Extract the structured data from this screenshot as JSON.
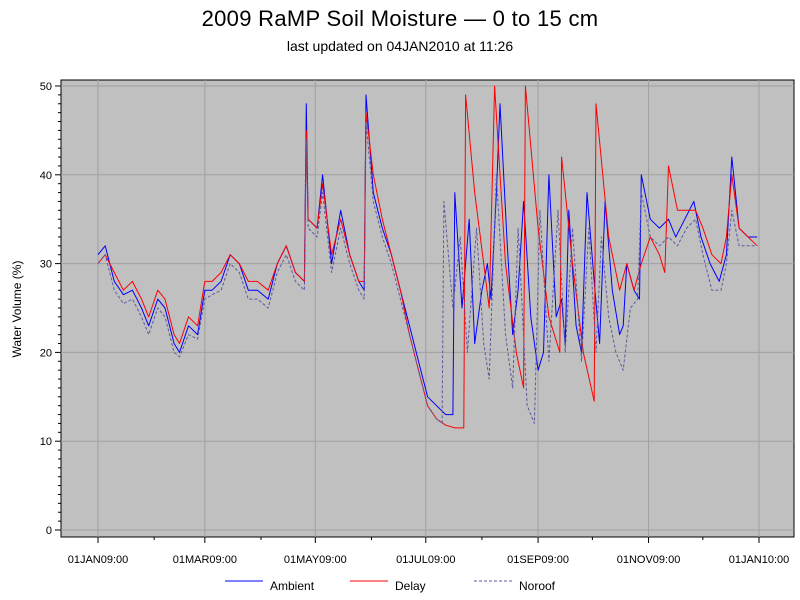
{
  "chart_data": {
    "type": "line",
    "title": "2009 RaMP Soil Moisture — 0 to 15 cm",
    "subtitle": "last updated on 04JAN2010 at 11:26",
    "xlabel": "",
    "ylabel": "Water Volume (%)",
    "ylim": [
      0,
      50
    ],
    "xlim": [
      "2009-01-01",
      "2010-01-01"
    ],
    "yticks": [
      0,
      10,
      20,
      30,
      40,
      50
    ],
    "xticks": [
      {
        "date": "2009-01-01",
        "label": "01JAN09:00"
      },
      {
        "date": "2009-03-01",
        "label": "01MAR09:00"
      },
      {
        "date": "2009-05-01",
        "label": "01MAY09:00"
      },
      {
        "date": "2009-07-01",
        "label": "01JUL09:00"
      },
      {
        "date": "2009-09-01",
        "label": "01SEP09:00"
      },
      {
        "date": "2009-11-01",
        "label": "01NOV09:00"
      },
      {
        "date": "2010-01-01",
        "label": "01JAN10:00"
      }
    ],
    "grid": true,
    "legend_position": "bottom",
    "series": [
      {
        "name": "Ambient",
        "color": "#0000ff",
        "style": "solid",
        "points": [
          [
            "2009-01-01",
            31
          ],
          [
            "2009-01-05",
            32
          ],
          [
            "2009-01-10",
            28
          ],
          [
            "2009-01-15",
            26.5
          ],
          [
            "2009-01-20",
            27
          ],
          [
            "2009-01-25",
            25
          ],
          [
            "2009-01-29",
            23
          ],
          [
            "2009-02-03",
            26
          ],
          [
            "2009-02-07",
            25
          ],
          [
            "2009-02-12",
            21
          ],
          [
            "2009-02-15",
            20
          ],
          [
            "2009-02-20",
            23
          ],
          [
            "2009-02-25",
            22
          ],
          [
            "2009-03-01",
            27
          ],
          [
            "2009-03-05",
            27
          ],
          [
            "2009-03-10",
            28
          ],
          [
            "2009-03-15",
            31
          ],
          [
            "2009-03-20",
            30
          ],
          [
            "2009-03-25",
            27
          ],
          [
            "2009-03-30",
            27
          ],
          [
            "2009-04-05",
            26
          ],
          [
            "2009-04-10",
            30
          ],
          [
            "2009-04-15",
            32
          ],
          [
            "2009-04-20",
            29
          ],
          [
            "2009-04-25",
            28
          ],
          [
            "2009-04-26",
            48
          ],
          [
            "2009-04-27",
            35
          ],
          [
            "2009-05-02",
            34
          ],
          [
            "2009-05-05",
            40
          ],
          [
            "2009-05-10",
            30
          ],
          [
            "2009-05-15",
            36
          ],
          [
            "2009-05-20",
            31
          ],
          [
            "2009-05-25",
            28
          ],
          [
            "2009-05-28",
            27
          ],
          [
            "2009-05-29",
            49
          ],
          [
            "2009-06-02",
            38
          ],
          [
            "2009-06-07",
            34
          ],
          [
            "2009-06-12",
            31
          ],
          [
            "2009-06-17",
            27
          ],
          [
            "2009-06-22",
            23
          ],
          [
            "2009-06-27",
            19
          ],
          [
            "2009-07-02",
            15
          ],
          [
            "2009-07-07",
            14
          ],
          [
            "2009-07-12",
            13
          ],
          [
            "2009-07-16",
            13
          ],
          [
            "2009-07-17",
            38
          ],
          [
            "2009-07-21",
            25
          ],
          [
            "2009-07-25",
            35
          ],
          [
            "2009-07-28",
            21
          ],
          [
            "2009-08-01",
            27
          ],
          [
            "2009-08-04",
            30
          ],
          [
            "2009-08-06",
            26
          ],
          [
            "2009-08-09",
            38
          ],
          [
            "2009-08-11",
            48
          ],
          [
            "2009-08-15",
            32
          ],
          [
            "2009-08-18",
            22
          ],
          [
            "2009-08-21",
            27
          ],
          [
            "2009-08-24",
            37
          ],
          [
            "2009-08-28",
            24
          ],
          [
            "2009-09-01",
            18
          ],
          [
            "2009-09-04",
            20
          ],
          [
            "2009-09-07",
            40
          ],
          [
            "2009-09-11",
            24
          ],
          [
            "2009-09-14",
            26
          ],
          [
            "2009-09-16",
            21
          ],
          [
            "2009-09-18",
            36
          ],
          [
            "2009-09-22",
            23
          ],
          [
            "2009-09-25",
            20
          ],
          [
            "2009-09-28",
            38
          ],
          [
            "2009-10-02",
            28
          ],
          [
            "2009-10-05",
            21
          ],
          [
            "2009-10-08",
            37
          ],
          [
            "2009-10-12",
            27
          ],
          [
            "2009-10-16",
            22
          ],
          [
            "2009-10-18",
            23
          ],
          [
            "2009-10-20",
            30
          ],
          [
            "2009-10-24",
            27
          ],
          [
            "2009-10-27",
            26
          ],
          [
            "2009-10-28",
            40
          ],
          [
            "2009-11-02",
            35
          ],
          [
            "2009-11-07",
            34
          ],
          [
            "2009-11-12",
            35
          ],
          [
            "2009-11-16",
            33
          ],
          [
            "2009-11-21",
            35
          ],
          [
            "2009-11-26",
            37
          ],
          [
            "2009-11-30",
            33
          ],
          [
            "2009-12-05",
            30
          ],
          [
            "2009-12-10",
            28
          ],
          [
            "2009-12-14",
            31
          ],
          [
            "2009-12-17",
            42
          ],
          [
            "2009-12-21",
            34
          ],
          [
            "2009-12-26",
            33
          ],
          [
            "2009-12-31",
            33
          ]
        ]
      },
      {
        "name": "Delay",
        "color": "#ff0000",
        "style": "solid",
        "points": [
          [
            "2009-01-01",
            30
          ],
          [
            "2009-01-05",
            31
          ],
          [
            "2009-01-10",
            29
          ],
          [
            "2009-01-15",
            27
          ],
          [
            "2009-01-20",
            28
          ],
          [
            "2009-01-25",
            26
          ],
          [
            "2009-01-29",
            24
          ],
          [
            "2009-02-03",
            27
          ],
          [
            "2009-02-07",
            26
          ],
          [
            "2009-02-12",
            22
          ],
          [
            "2009-02-15",
            21
          ],
          [
            "2009-02-20",
            24
          ],
          [
            "2009-02-25",
            23
          ],
          [
            "2009-03-01",
            28
          ],
          [
            "2009-03-05",
            28
          ],
          [
            "2009-03-10",
            29
          ],
          [
            "2009-03-15",
            31
          ],
          [
            "2009-03-20",
            30
          ],
          [
            "2009-03-25",
            28
          ],
          [
            "2009-03-30",
            28
          ],
          [
            "2009-04-05",
            27
          ],
          [
            "2009-04-10",
            30
          ],
          [
            "2009-04-15",
            32
          ],
          [
            "2009-04-20",
            29
          ],
          [
            "2009-04-25",
            28
          ],
          [
            "2009-04-26",
            45
          ],
          [
            "2009-04-27",
            35
          ],
          [
            "2009-05-02",
            34
          ],
          [
            "2009-05-05",
            39
          ],
          [
            "2009-05-10",
            31
          ],
          [
            "2009-05-15",
            35
          ],
          [
            "2009-05-20",
            31
          ],
          [
            "2009-05-25",
            28
          ],
          [
            "2009-05-28",
            28
          ],
          [
            "2009-05-29",
            47
          ],
          [
            "2009-06-02",
            40
          ],
          [
            "2009-06-07",
            35
          ],
          [
            "2009-06-12",
            31
          ],
          [
            "2009-06-17",
            27
          ],
          [
            "2009-06-22",
            22
          ],
          [
            "2009-06-27",
            18
          ],
          [
            "2009-07-02",
            14
          ],
          [
            "2009-07-07",
            12.5
          ],
          [
            "2009-07-12",
            11.8
          ],
          [
            "2009-07-17",
            11.5
          ],
          [
            "2009-07-22",
            11.5
          ],
          [
            "2009-07-23",
            49
          ],
          [
            "2009-07-28",
            38
          ],
          [
            "2009-08-02",
            30
          ],
          [
            "2009-08-05",
            25
          ],
          [
            "2009-08-08",
            50
          ],
          [
            "2009-08-14",
            30
          ],
          [
            "2009-08-20",
            20
          ],
          [
            "2009-08-24",
            16
          ],
          [
            "2009-08-25",
            50
          ],
          [
            "2009-09-01",
            34
          ],
          [
            "2009-09-07",
            24
          ],
          [
            "2009-09-13",
            20
          ],
          [
            "2009-09-14",
            42
          ],
          [
            "2009-09-20",
            30
          ],
          [
            "2009-09-26",
            20
          ],
          [
            "2009-10-02",
            14.5
          ],
          [
            "2009-10-03",
            48
          ],
          [
            "2009-10-10",
            33
          ],
          [
            "2009-10-16",
            27
          ],
          [
            "2009-10-20",
            30
          ],
          [
            "2009-10-24",
            27
          ],
          [
            "2009-10-28",
            30
          ],
          [
            "2009-11-02",
            33
          ],
          [
            "2009-11-07",
            31
          ],
          [
            "2009-11-10",
            29
          ],
          [
            "2009-11-12",
            41
          ],
          [
            "2009-11-17",
            36
          ],
          [
            "2009-11-22",
            36
          ],
          [
            "2009-11-27",
            36
          ],
          [
            "2009-12-01",
            34
          ],
          [
            "2009-12-06",
            31
          ],
          [
            "2009-12-11",
            30
          ],
          [
            "2009-12-14",
            33
          ],
          [
            "2009-12-17",
            40
          ],
          [
            "2009-12-21",
            34
          ],
          [
            "2009-12-26",
            33
          ],
          [
            "2009-12-31",
            32
          ]
        ]
      },
      {
        "name": "Noroof",
        "color": "#5a5aa0",
        "style": "dashed",
        "points": [
          [
            "2009-01-01",
            30
          ],
          [
            "2009-01-05",
            31
          ],
          [
            "2009-01-10",
            27
          ],
          [
            "2009-01-15",
            25.5
          ],
          [
            "2009-01-20",
            26
          ],
          [
            "2009-01-25",
            24
          ],
          [
            "2009-01-29",
            22
          ],
          [
            "2009-02-03",
            25
          ],
          [
            "2009-02-07",
            24
          ],
          [
            "2009-02-12",
            20
          ],
          [
            "2009-02-15",
            19.5
          ],
          [
            "2009-02-20",
            22
          ],
          [
            "2009-02-25",
            21.5
          ],
          [
            "2009-03-01",
            26
          ],
          [
            "2009-03-05",
            26.5
          ],
          [
            "2009-03-10",
            27
          ],
          [
            "2009-03-15",
            30
          ],
          [
            "2009-03-20",
            29
          ],
          [
            "2009-03-25",
            26
          ],
          [
            "2009-03-30",
            26
          ],
          [
            "2009-04-05",
            25
          ],
          [
            "2009-04-10",
            29
          ],
          [
            "2009-04-15",
            31
          ],
          [
            "2009-04-20",
            28
          ],
          [
            "2009-04-25",
            27
          ],
          [
            "2009-04-26",
            44
          ],
          [
            "2009-04-27",
            34
          ],
          [
            "2009-05-02",
            33
          ],
          [
            "2009-05-05",
            38
          ],
          [
            "2009-05-10",
            29
          ],
          [
            "2009-05-15",
            34
          ],
          [
            "2009-05-20",
            30
          ],
          [
            "2009-05-25",
            27
          ],
          [
            "2009-05-28",
            26
          ],
          [
            "2009-05-29",
            46
          ],
          [
            "2009-06-02",
            37
          ],
          [
            "2009-06-07",
            33
          ],
          [
            "2009-06-12",
            30
          ],
          [
            "2009-06-17",
            26
          ],
          [
            "2009-06-22",
            22
          ],
          [
            "2009-06-27",
            18
          ],
          [
            "2009-07-02",
            14
          ],
          [
            "2009-07-07",
            12.5
          ],
          [
            "2009-07-10",
            12
          ],
          [
            "2009-07-11",
            37
          ],
          [
            "2009-07-16",
            25
          ],
          [
            "2009-07-20",
            33
          ],
          [
            "2009-07-24",
            20
          ],
          [
            "2009-07-29",
            34
          ],
          [
            "2009-08-02",
            21
          ],
          [
            "2009-08-05",
            17
          ],
          [
            "2009-08-09",
            40
          ],
          [
            "2009-08-14",
            22
          ],
          [
            "2009-08-18",
            16
          ],
          [
            "2009-08-21",
            34
          ],
          [
            "2009-08-26",
            14
          ],
          [
            "2009-08-30",
            12
          ],
          [
            "2009-09-02",
            36
          ],
          [
            "2009-09-07",
            19
          ],
          [
            "2009-09-12",
            36
          ],
          [
            "2009-09-16",
            20
          ],
          [
            "2009-09-20",
            34
          ],
          [
            "2009-09-25",
            19
          ],
          [
            "2009-09-29",
            34
          ],
          [
            "2009-10-03",
            20
          ],
          [
            "2009-10-06",
            33
          ],
          [
            "2009-10-10",
            24
          ],
          [
            "2009-10-14",
            20
          ],
          [
            "2009-10-18",
            18
          ],
          [
            "2009-10-22",
            25
          ],
          [
            "2009-10-26",
            26
          ],
          [
            "2009-10-28",
            38
          ],
          [
            "2009-11-02",
            33
          ],
          [
            "2009-11-07",
            32
          ],
          [
            "2009-11-12",
            33
          ],
          [
            "2009-11-17",
            32
          ],
          [
            "2009-11-22",
            34
          ],
          [
            "2009-11-27",
            35
          ],
          [
            "2009-12-01",
            31
          ],
          [
            "2009-12-06",
            27
          ],
          [
            "2009-12-11",
            27
          ],
          [
            "2009-12-14",
            30
          ],
          [
            "2009-12-17",
            36
          ],
          [
            "2009-12-21",
            32
          ],
          [
            "2009-12-26",
            32
          ],
          [
            "2009-12-31",
            32
          ]
        ]
      }
    ]
  }
}
